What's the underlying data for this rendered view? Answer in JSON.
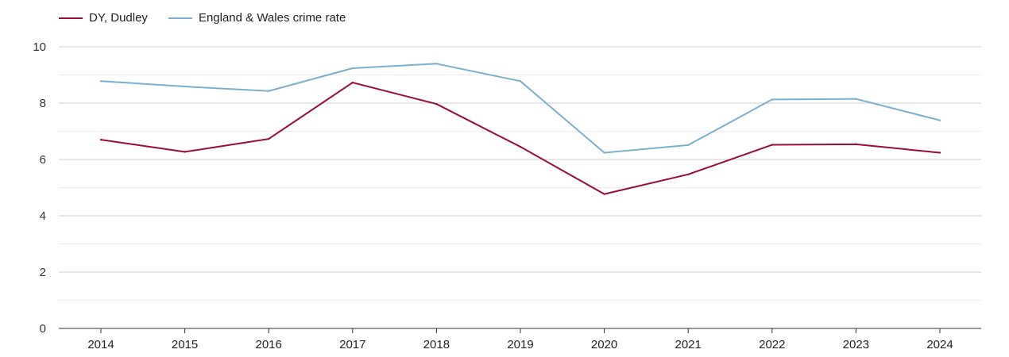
{
  "chart_data": {
    "type": "line",
    "title": "",
    "xlabel": "",
    "ylabel": "",
    "ylim": [
      0,
      10
    ],
    "yticks": [
      "0",
      "2",
      "4",
      "6",
      "8",
      "10"
    ],
    "grid": true,
    "legend_position": "top-left",
    "categories": [
      "2014",
      "2015",
      "2016",
      "2017",
      "2018",
      "2019",
      "2020",
      "2021",
      "2022",
      "2023",
      "2024"
    ],
    "series": [
      {
        "name": "DY, Dudley",
        "color": "#9b0c33",
        "values": [
          6.7,
          6.27,
          6.73,
          8.73,
          7.97,
          6.45,
          4.77,
          5.47,
          6.52,
          6.54,
          6.24
        ]
      },
      {
        "name": "England & Wales crime rate",
        "color": "#7aafcf",
        "values": [
          8.78,
          8.59,
          8.43,
          9.24,
          9.4,
          8.78,
          6.24,
          6.51,
          8.13,
          8.15,
          7.39
        ]
      }
    ]
  }
}
